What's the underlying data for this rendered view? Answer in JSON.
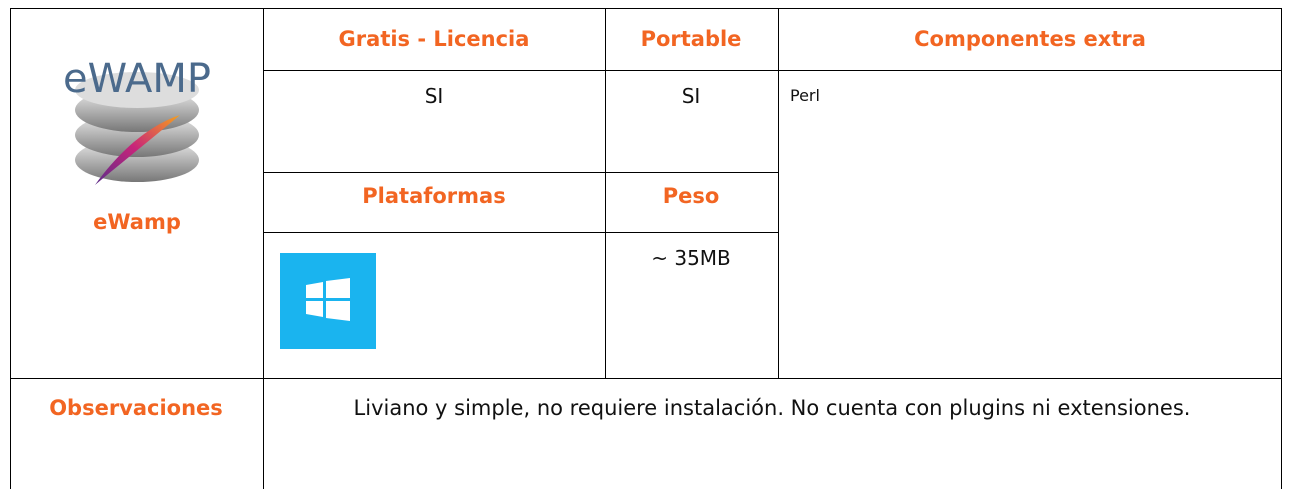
{
  "product": {
    "name": "eWamp",
    "logo_text": "eWAMP"
  },
  "table": {
    "headers": {
      "license": "Gratis - Licencia",
      "portable": "Portable",
      "extras": "Componentes extra",
      "platforms": "Plataformas",
      "weight": "Peso",
      "observations": "Observaciones"
    },
    "values": {
      "license": "SI",
      "portable": "SI",
      "extras": "Perl",
      "weight": "~ 35MB",
      "observations": "Liviano y simple, no requiere instalación. No cuenta con plugins ni extensiones."
    }
  }
}
